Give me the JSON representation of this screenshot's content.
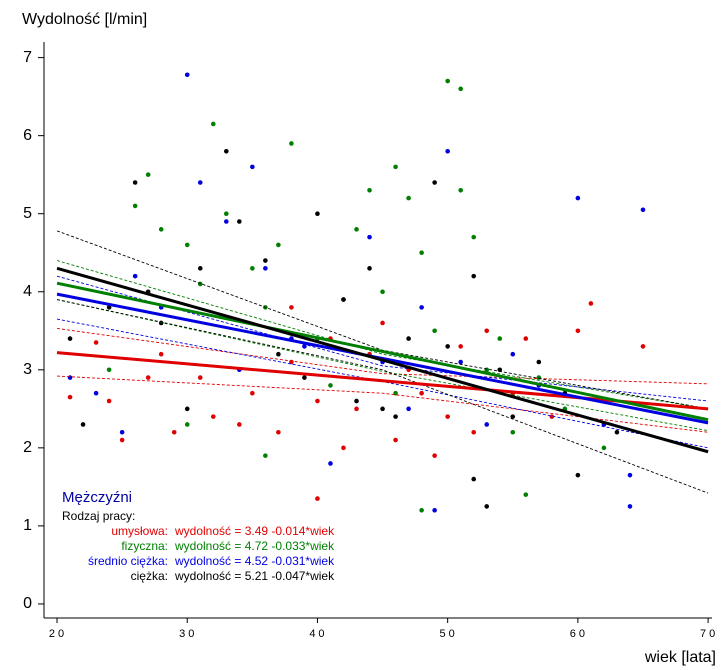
{
  "chart_data": {
    "type": "scatter",
    "title": "Wydolność [l/min]",
    "x_label": "wiek [lata]",
    "xlim": [
      19,
      70.3
    ],
    "ylim": [
      -0.18,
      7.2
    ],
    "xticks": [
      20,
      30,
      40,
      50,
      60,
      70
    ],
    "yticks": [
      0,
      1,
      2,
      3,
      4,
      5,
      6,
      7
    ],
    "legend": {
      "title": "Mężczyźni",
      "subtitle": "Rodzaj pracy:"
    },
    "series": [
      {
        "name": "umysłowa:",
        "equation": "wydolność = 3.49 -0.014*wiek",
        "color": "#e00000",
        "x": [
          21,
          24,
          25,
          27,
          28,
          29,
          31,
          32,
          34,
          35,
          37,
          38,
          40,
          41,
          42,
          43,
          44,
          46,
          47,
          48,
          49,
          50,
          51,
          52,
          53,
          55,
          56,
          58,
          60,
          61,
          65,
          40,
          38,
          45,
          23
        ],
        "y": [
          2.65,
          2.6,
          2.1,
          2.9,
          3.2,
          2.2,
          2.9,
          2.4,
          2.3,
          2.7,
          2.2,
          3.1,
          2.6,
          3.4,
          2.0,
          2.5,
          3.2,
          2.1,
          3.0,
          2.7,
          1.9,
          2.4,
          3.3,
          2.2,
          3.5,
          2.7,
          3.4,
          2.4,
          3.5,
          3.85,
          3.3,
          1.35,
          3.8,
          3.6,
          3.35
        ],
        "fit": {
          "x": [
            20,
            70
          ],
          "y": [
            3.22,
            2.5
          ]
        },
        "ci_upper": {
          "x": [
            20,
            45,
            70
          ],
          "y": [
            3.53,
            2.95,
            2.82
          ]
        },
        "ci_lower": {
          "x": [
            20,
            45,
            70
          ],
          "y": [
            2.92,
            2.7,
            2.2
          ]
        }
      },
      {
        "name": "fizyczna:",
        "equation": "wydolność = 4.72 -0.033*wiek",
        "color": "#008000",
        "x": [
          26,
          27,
          28,
          30,
          31,
          32,
          33,
          35,
          36,
          37,
          38,
          40,
          41,
          43,
          44,
          45,
          46,
          47,
          48,
          49,
          50,
          51,
          51,
          52,
          53,
          54,
          55,
          56,
          57,
          59,
          62,
          36,
          30,
          24,
          46,
          48
        ],
        "y": [
          5.1,
          5.5,
          4.8,
          4.6,
          4.1,
          6.15,
          5.0,
          4.3,
          3.8,
          4.6,
          5.9,
          3.4,
          2.8,
          4.8,
          5.3,
          4.0,
          5.6,
          5.2,
          4.5,
          3.5,
          6.7,
          6.6,
          5.3,
          4.7,
          3.0,
          3.4,
          2.2,
          1.4,
          2.9,
          2.5,
          2.0,
          1.9,
          2.3,
          3.0,
          2.7,
          1.2
        ],
        "fit": {
          "x": [
            20,
            70
          ],
          "y": [
            4.11,
            2.36
          ]
        },
        "ci_upper": {
          "x": [
            20,
            45,
            70
          ],
          "y": [
            4.4,
            3.2,
            2.5
          ]
        },
        "ci_lower": {
          "x": [
            20,
            45,
            70
          ],
          "y": [
            3.9,
            2.98,
            2.22
          ]
        }
      },
      {
        "name": "średnio ciężka:",
        "equation": "wydolność = 4.52 -0.031*wiek",
        "color": "#0000e0",
        "x": [
          21,
          23,
          25,
          26,
          28,
          30,
          31,
          33,
          35,
          36,
          38,
          39,
          41,
          42,
          44,
          45,
          47,
          49,
          50,
          51,
          53,
          55,
          57,
          60,
          62,
          64,
          65,
          64,
          34,
          48
        ],
        "y": [
          2.9,
          2.7,
          2.2,
          4.2,
          3.8,
          6.78,
          5.4,
          4.9,
          5.6,
          4.3,
          3.4,
          3.3,
          1.8,
          3.9,
          4.7,
          3.1,
          2.5,
          1.2,
          5.8,
          3.1,
          2.3,
          3.2,
          2.8,
          5.2,
          2.3,
          1.25,
          5.05,
          1.65,
          3.0,
          3.8
        ],
        "fit": {
          "x": [
            20,
            70
          ],
          "y": [
            3.97,
            2.32
          ]
        },
        "ci_upper": {
          "x": [
            20,
            45,
            70
          ],
          "y": [
            4.2,
            3.05,
            2.6
          ]
        },
        "ci_lower": {
          "x": [
            20,
            45,
            70
          ],
          "y": [
            3.65,
            2.85,
            2.0
          ]
        }
      },
      {
        "name": "ciężka:",
        "equation": "wydolność = 5.21 -0.047*wiek",
        "color": "#000000",
        "x": [
          21,
          22,
          24,
          26,
          27,
          28,
          30,
          31,
          33,
          34,
          36,
          37,
          39,
          40,
          42,
          43,
          44,
          45,
          46,
          47,
          49,
          50,
          52,
          53,
          54,
          55,
          57,
          59,
          60,
          63,
          52
        ],
        "y": [
          3.4,
          2.3,
          3.8,
          5.4,
          4.0,
          3.6,
          2.5,
          4.3,
          5.8,
          4.9,
          4.4,
          3.2,
          2.9,
          5.0,
          3.9,
          2.6,
          4.3,
          2.5,
          2.4,
          3.4,
          5.4,
          3.3,
          4.2,
          1.25,
          3.0,
          2.4,
          3.1,
          2.7,
          1.65,
          2.2,
          1.6
        ],
        "fit": {
          "x": [
            20,
            70
          ],
          "y": [
            4.3,
            1.95
          ]
        },
        "ci_upper": {
          "x": [
            20,
            45,
            70
          ],
          "y": [
            4.78,
            3.25,
            2.5
          ]
        },
        "ci_lower": {
          "x": [
            20,
            45,
            70
          ],
          "y": [
            3.9,
            3.0,
            1.42
          ]
        }
      }
    ]
  }
}
